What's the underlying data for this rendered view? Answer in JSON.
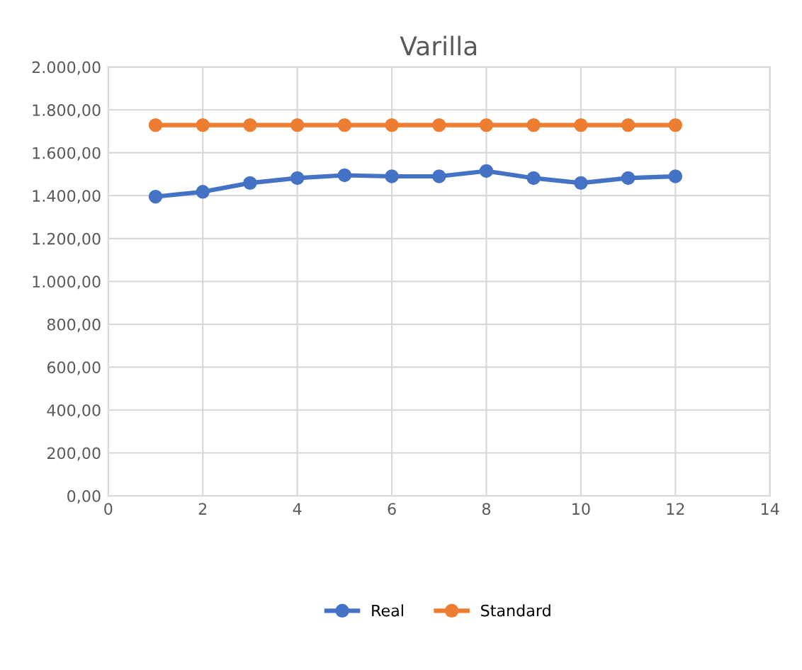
{
  "chart_data": {
    "type": "line",
    "title": "Varilla",
    "x": [
      1,
      2,
      3,
      4,
      5,
      6,
      7,
      8,
      9,
      10,
      11,
      12
    ],
    "series": [
      {
        "name": "Real",
        "color": "#4472c4",
        "values": [
          1395,
          1418,
          1459,
          1482,
          1495,
          1490,
          1490,
          1515,
          1482,
          1459,
          1482,
          1490
        ]
      },
      {
        "name": "Standard",
        "color": "#ed7d31",
        "values": [
          1729,
          1729,
          1729,
          1729,
          1729,
          1729,
          1729,
          1729,
          1729,
          1729,
          1729,
          1729
        ]
      }
    ],
    "xlim": [
      0,
      14
    ],
    "xticks": [
      0,
      2,
      4,
      6,
      8,
      10,
      12,
      14
    ],
    "ylim": [
      0,
      2000
    ],
    "yticks": [
      {
        "value": 0,
        "label": "0,00"
      },
      {
        "value": 200,
        "label": "200,00"
      },
      {
        "value": 400,
        "label": "400,00"
      },
      {
        "value": 600,
        "label": "600,00"
      },
      {
        "value": 800,
        "label": "800,00"
      },
      {
        "value": 1000,
        "label": "1.000,00"
      },
      {
        "value": 1200,
        "label": "1.200,00"
      },
      {
        "value": 1400,
        "label": "1.400,00"
      },
      {
        "value": 1600,
        "label": "1.600,00"
      },
      {
        "value": 1800,
        "label": "1.800,00"
      },
      {
        "value": 2000,
        "label": "2.000,00"
      }
    ],
    "grid": true,
    "legend": "bottom",
    "marker": "circle",
    "line_style": "solid"
  }
}
